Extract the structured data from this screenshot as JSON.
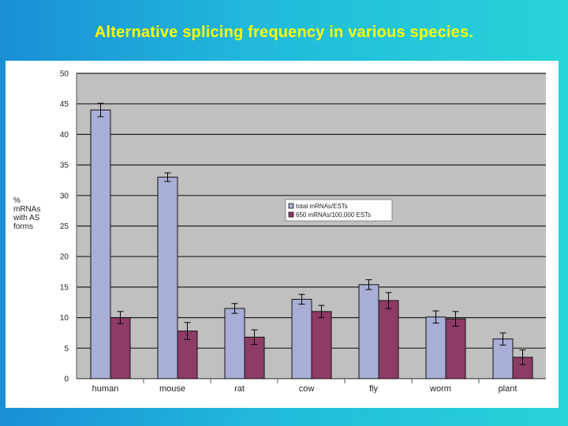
{
  "slide": {
    "title": "Alternative splicing frequency in various species."
  },
  "chart_data": {
    "type": "bar",
    "title": "",
    "ylabel_lines": [
      "%",
      "mRNAs",
      "with AS",
      "forms"
    ],
    "xlabel": "",
    "categories": [
      "human",
      "mouse",
      "rat",
      "cow",
      "fly",
      "worm",
      "plant"
    ],
    "yticks": [
      "0",
      "5",
      "10",
      "15",
      "20",
      "25",
      "30",
      "35",
      "40",
      "45",
      "50"
    ],
    "ylim": [
      0,
      50
    ],
    "grid": true,
    "legend_position": "right-middle",
    "series": [
      {
        "name": "total mRNAs/ESTs",
        "color": "#a9aed6",
        "values": [
          44,
          33,
          11.5,
          13,
          15.4,
          10.1,
          6.5
        ],
        "errors": [
          1.1,
          0.7,
          0.8,
          0.8,
          0.8,
          1.0,
          1.0
        ]
      },
      {
        "name": "650 mRNAs/100,000 ESTs",
        "color": "#8e3b66",
        "values": [
          10,
          7.8,
          6.8,
          11,
          12.8,
          9.8,
          3.5
        ],
        "errors": [
          1.0,
          1.4,
          1.2,
          1.0,
          1.3,
          1.2,
          1.2
        ]
      }
    ],
    "colors": {
      "plot_background": "#c0c0c0",
      "gridline": "#222222",
      "bar_edge": "#111111"
    }
  }
}
